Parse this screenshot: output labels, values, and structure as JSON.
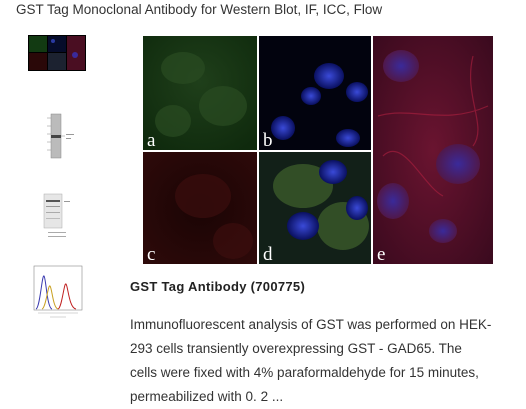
{
  "header": {
    "title": "GST Tag Monoclonal Antibody for Western Blot, IF, ICC, Flow"
  },
  "figure": {
    "panels": [
      "a",
      "b",
      "c",
      "d",
      "e"
    ]
  },
  "caption": {
    "title": "GST Tag Antibody (700775)",
    "lines": [
      "Immunofluorescent analysis of GST was performed on HEK-",
      "293 cells transiently overexpressing GST - GAD65. The",
      "cells were fixed with 4% paraformaldehyde for 15 minutes,",
      "permeabilized with 0. 2 ..."
    ]
  }
}
